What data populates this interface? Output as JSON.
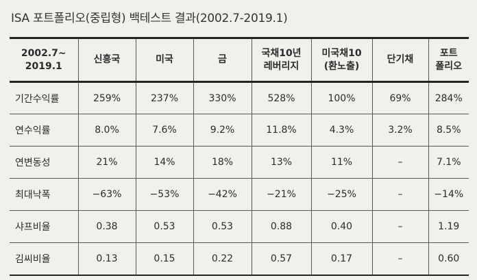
{
  "title": "ISA 포트폴리오(중립형) 백테스트 결과(2002.7-2019.1)",
  "header": {
    "period": [
      "2002.7~",
      "2019.1"
    ],
    "columns": [
      [
        "신흥국"
      ],
      [
        "미국"
      ],
      [
        "금"
      ],
      [
        "국채10년",
        "레버리지"
      ],
      [
        "미국채10",
        "(환노출)"
      ],
      [
        "단기채"
      ],
      [
        "포트",
        "폴리오"
      ]
    ]
  },
  "rows": [
    {
      "label": "기간수익률",
      "values": [
        "259%",
        "237%",
        "330%",
        "528%",
        "100%",
        "69%",
        "284%"
      ]
    },
    {
      "label": "연수익률",
      "values": [
        "8.0%",
        "7.6%",
        "9.2%",
        "11.8%",
        "4.3%",
        "3.2%",
        "8.5%"
      ]
    },
    {
      "label": "연변동성",
      "values": [
        "21%",
        "14%",
        "18%",
        "13%",
        "11%",
        "–",
        "7.1%"
      ]
    },
    {
      "label": "최대낙폭",
      "values": [
        "−63%",
        "−53%",
        "−42%",
        "−21%",
        "−25%",
        "–",
        "−14%"
      ]
    },
    {
      "label": "샤프비율",
      "values": [
        "0.38",
        "0.53",
        "0.53",
        "0.88",
        "0.40",
        "–",
        "1.19"
      ]
    },
    {
      "label": "김씨비율",
      "values": [
        "0.13",
        "0.15",
        "0.22",
        "0.57",
        "0.17",
        "–",
        "0.60"
      ]
    }
  ]
}
